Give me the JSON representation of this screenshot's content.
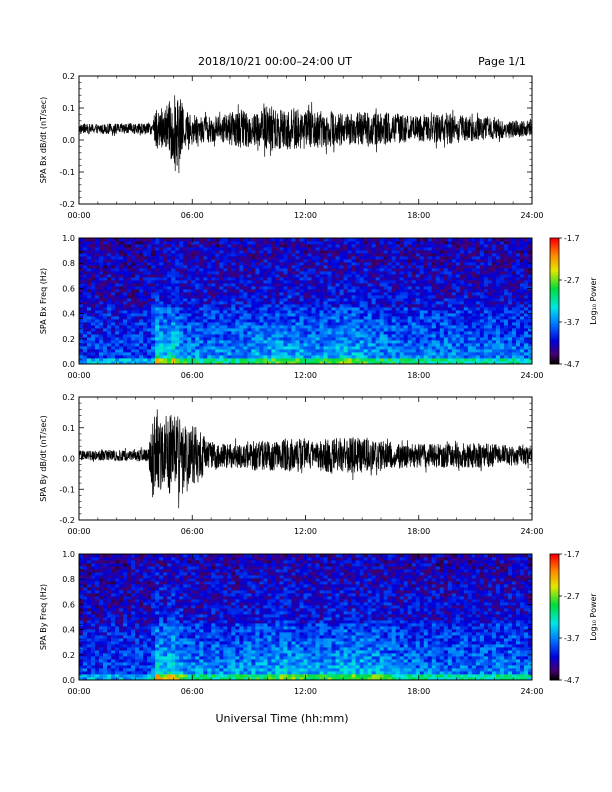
{
  "header": {
    "title": "2018/10/21  00:00–24:00 UT",
    "page": "Page 1/1"
  },
  "xaxis_label": "Universal Time (hh:mm)",
  "colorbar_label": "Log₁₀ Power",
  "chart_data": [
    {
      "type": "line",
      "ylabel": "SPA Bx dB/dt (nT/sec)",
      "xlim": [
        0,
        24
      ],
      "xticks": [
        "00:00",
        "06:00",
        "12:00",
        "18:00",
        "24:00"
      ],
      "ylim": [
        -0.2,
        0.2
      ],
      "yticks": [
        "-0.2",
        "-0.1",
        "0.0",
        "0.1",
        "0.2"
      ],
      "baseline": 0.035,
      "envelope_hours": [
        0,
        3.9,
        4.1,
        4.3,
        4.5,
        4.8,
        5.2,
        5.6,
        6.0,
        6.5,
        7.5,
        8.5,
        9.5,
        10.0,
        10.5,
        11.5,
        12.5,
        13.5,
        14.5,
        15.5,
        16.5,
        17.5,
        18.5,
        19.5,
        20.5,
        21.5,
        22.5,
        24
      ],
      "envelope_amplitude": [
        0.015,
        0.018,
        0.08,
        0.07,
        0.06,
        0.09,
        0.12,
        0.06,
        0.05,
        0.045,
        0.04,
        0.06,
        0.055,
        0.075,
        0.07,
        0.065,
        0.06,
        0.055,
        0.05,
        0.055,
        0.05,
        0.04,
        0.04,
        0.05,
        0.04,
        0.035,
        0.03,
        0.025
      ]
    },
    {
      "type": "heatmap",
      "ylabel": "SPA Bx Freq (Hz)",
      "xlim": [
        0,
        24
      ],
      "xticks": [
        "00:00",
        "06:00",
        "12:00",
        "18:00",
        "24:00"
      ],
      "ylim": [
        0,
        1.0
      ],
      "yticks": [
        "0.0",
        "0.2",
        "0.4",
        "0.6",
        "0.8",
        "1.0"
      ],
      "zlim": [
        -4.7,
        -1.7
      ],
      "zticks": [
        "-4.7",
        "-3.7",
        "-2.7",
        "-1.7"
      ],
      "activity_hours": [
        0,
        3.9,
        4.1,
        4.5,
        5.0,
        5.5,
        6.5,
        8.0,
        10.0,
        11.0,
        12.5,
        14.0,
        15.5,
        17.0,
        19.0,
        21.0,
        23.0,
        24
      ],
      "activity_level": [
        0.25,
        0.3,
        0.95,
        0.7,
        0.85,
        0.6,
        0.5,
        0.5,
        0.6,
        0.65,
        0.55,
        0.7,
        0.6,
        0.5,
        0.5,
        0.45,
        0.45,
        0.4
      ]
    },
    {
      "type": "line",
      "ylabel": "SPA By dB/dt (nT/sec)",
      "xlim": [
        0,
        24
      ],
      "xticks": [
        "00:00",
        "06:00",
        "12:00",
        "18:00",
        "24:00"
      ],
      "ylim": [
        -0.2,
        0.2
      ],
      "yticks": [
        "-0.2",
        "-0.1",
        "0.0",
        "0.1",
        "0.2"
      ],
      "baseline": 0.01,
      "envelope_hours": [
        0,
        3.7,
        3.9,
        4.2,
        4.5,
        4.9,
        5.3,
        5.7,
        6.0,
        6.3,
        6.8,
        7.5,
        8.5,
        9.5,
        10.5,
        11.5,
        12.5,
        13.5,
        14.5,
        15.5,
        16.5,
        17.5,
        18.5,
        19.5,
        20.5,
        21.5,
        22.5,
        24
      ],
      "envelope_amplitude": [
        0.015,
        0.02,
        0.14,
        0.12,
        0.1,
        0.16,
        0.13,
        0.09,
        0.1,
        0.09,
        0.05,
        0.04,
        0.045,
        0.05,
        0.05,
        0.055,
        0.05,
        0.06,
        0.06,
        0.05,
        0.045,
        0.04,
        0.04,
        0.04,
        0.04,
        0.04,
        0.035,
        0.03
      ]
    },
    {
      "type": "heatmap",
      "ylabel": "SPA By Freq (Hz)",
      "xlim": [
        0,
        24
      ],
      "xticks": [
        "00:00",
        "06:00",
        "12:00",
        "18:00",
        "24:00"
      ],
      "ylim": [
        0,
        1.0
      ],
      "yticks": [
        "0.0",
        "0.2",
        "0.4",
        "0.6",
        "0.8",
        "1.0"
      ],
      "zlim": [
        -4.7,
        -1.7
      ],
      "zticks": [
        "-4.7",
        "-3.7",
        "-2.7",
        "-1.7"
      ],
      "activity_hours": [
        0,
        3.9,
        4.1,
        4.5,
        5.0,
        5.5,
        6.5,
        8.0,
        10.0,
        11.0,
        12.5,
        14.0,
        15.5,
        17.0,
        19.0,
        21.0,
        23.0,
        24
      ],
      "activity_level": [
        0.25,
        0.3,
        0.95,
        0.75,
        0.9,
        0.6,
        0.5,
        0.5,
        0.6,
        0.7,
        0.55,
        0.7,
        0.65,
        0.5,
        0.45,
        0.45,
        0.5,
        0.4
      ]
    }
  ]
}
